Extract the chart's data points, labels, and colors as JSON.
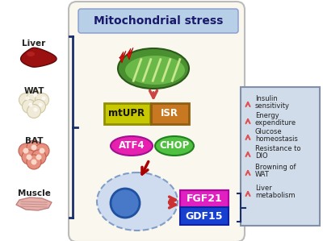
{
  "title": "Mitochondrial stress",
  "title_bg": "#b8cfe8",
  "main_bg": "#faf8ee",
  "arrow_up_color": "#e05050",
  "mtupr_color": "#c8c800",
  "mtupr_border": "#909000",
  "isr_color": "#c87820",
  "isr_border": "#906010",
  "atf4_color": "#e820b0",
  "chop_color": "#50c040",
  "fgf21_color": "#e020c0",
  "gdf15_color": "#1840d0",
  "cell_fill": "#c8d8f0",
  "cell_border": "#7090c0",
  "nucleus_fill": "#4878c8",
  "mito_fill": "#4a9030",
  "red_arrow_color": "#c03030",
  "down_arrow_color": "#cc4444",
  "left_bracket_color": "#1a2e6b",
  "right_box_bg": "#d0dcea",
  "right_box_border": "#8090aa",
  "right_labels": [
    "Insulin\nsensitivity",
    "Energy\nexpenditure",
    "Glucose\nhomeostasis",
    "Resistance to\nDIO",
    "Browning of\nWAT",
    "Liver\nmetabolism"
  ]
}
